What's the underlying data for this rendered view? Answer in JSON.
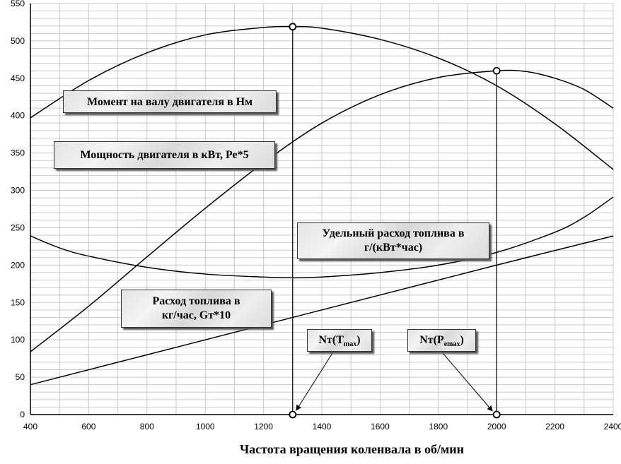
{
  "chart_data": {
    "type": "line",
    "xlabel": "Частота вращения коленвала в об/мин",
    "ylabel": "",
    "xlim": [
      400,
      2400
    ],
    "ylim": [
      0,
      550
    ],
    "x_ticks": [
      400,
      600,
      800,
      1000,
      1200,
      1400,
      1600,
      1800,
      2000,
      2200,
      2400
    ],
    "y_ticks": [
      0,
      50,
      100,
      150,
      200,
      250,
      300,
      350,
      400,
      450,
      500,
      550
    ],
    "grid": true,
    "series": [
      {
        "name": "Момент на валу двигателя в Нм",
        "x": [
          400,
          600,
          800,
          1000,
          1200,
          1300,
          1400,
          1600,
          1800,
          2000,
          2200,
          2400
        ],
        "y": [
          397,
          447,
          484,
          508,
          518,
          519,
          517,
          502,
          477,
          440,
          389,
          328
        ]
      },
      {
        "name": "Мощность двигателя в кВт, Ре*5",
        "x": [
          400,
          600,
          800,
          1000,
          1200,
          1400,
          1600,
          1800,
          2000,
          2100,
          2200,
          2300,
          2400
        ],
        "y": [
          84,
          145,
          211,
          276,
          337,
          390,
          428,
          451,
          460,
          459,
          450,
          435,
          410
        ]
      },
      {
        "name": "Удельный расход топлива в г/(кВт*час)",
        "x": [
          400,
          500,
          600,
          800,
          1000,
          1200,
          1300,
          1400,
          1600,
          1800,
          2000,
          2200,
          2300,
          2400
        ],
        "y": [
          239,
          223,
          212,
          197,
          188,
          184,
          183,
          184,
          190,
          200,
          217,
          244,
          264,
          291
        ]
      },
      {
        "name": "Расход топлива в кг/час, Gт*10",
        "x": [
          400,
          800,
          1200,
          1600,
          2000,
          2400
        ],
        "y": [
          40,
          80,
          120,
          160,
          200,
          239
        ]
      }
    ],
    "markers": [
      {
        "x": 1300,
        "y": 519
      },
      {
        "x": 2000,
        "y": 460
      },
      {
        "x": 1300,
        "y": 0
      },
      {
        "x": 2000,
        "y": 0
      }
    ],
    "verticals": [
      {
        "x": 1300,
        "y_top": 519
      },
      {
        "x": 2000,
        "y_top": 460
      }
    ],
    "annotations": [
      {
        "lines": [
          "Момент на валу двигателя в Нм"
        ]
      },
      {
        "lines": [
          "Мощность двигателя в кВт, Ре*5"
        ]
      },
      {
        "lines": [
          "Удельный расход топлива в",
          "г/(кВт*час)"
        ]
      },
      {
        "lines": [
          "Расход топлива в",
          "кг/час,  Gт*10"
        ]
      },
      {
        "main": "Nт(T",
        "sub": "max",
        "close": ")",
        "target_x": 1300
      },
      {
        "main": "Nт(P",
        "sub": "emax",
        "close": ")",
        "target_x": 2000
      }
    ]
  }
}
